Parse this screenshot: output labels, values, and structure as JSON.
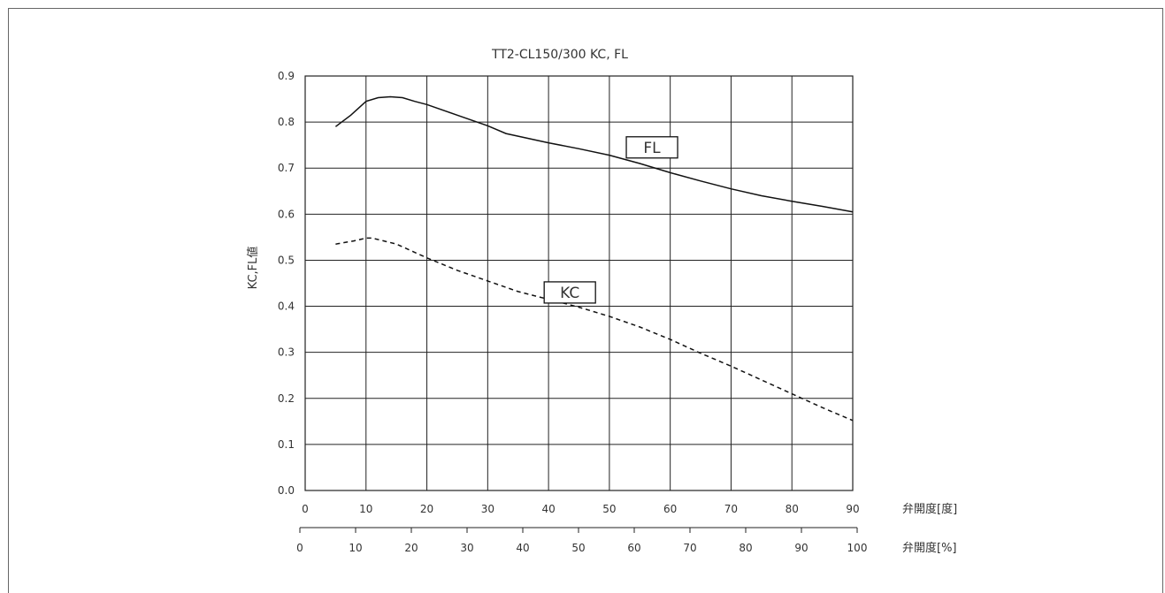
{
  "chart_data": {
    "type": "line",
    "title": "TT2-CL150/300 KC, FL",
    "ylabel": "KC,FL値",
    "xlabel_degree": "弁開度[度]",
    "xlabel_percent": "弁開度[%]",
    "xlim": [
      0,
      90
    ],
    "ylim": [
      0.0,
      0.9
    ],
    "x_ticks_degree": [
      "0",
      "10",
      "20",
      "30",
      "40",
      "50",
      "60",
      "70",
      "80",
      "90"
    ],
    "x_ticks_percent": [
      "0",
      "10",
      "20",
      "30",
      "40",
      "50",
      "60",
      "70",
      "80",
      "90",
      "100"
    ],
    "y_ticks": [
      "0.0",
      "0.1",
      "0.2",
      "0.3",
      "0.4",
      "0.5",
      "0.6",
      "0.7",
      "0.8",
      "0.9"
    ],
    "grid": true,
    "series": [
      {
        "name": "FL",
        "line_style": "solid",
        "x": [
          5,
          7.5,
          10,
          12,
          14,
          16,
          18,
          20,
          25,
          30,
          33,
          40,
          45,
          50,
          55,
          60,
          65,
          70,
          75,
          80,
          85,
          90
        ],
        "y": [
          0.79,
          0.815,
          0.845,
          0.853,
          0.855,
          0.853,
          0.845,
          0.838,
          0.815,
          0.792,
          0.775,
          0.755,
          0.742,
          0.728,
          0.71,
          0.69,
          0.672,
          0.655,
          0.64,
          0.628,
          0.617,
          0.605
        ]
      },
      {
        "name": "KC",
        "line_style": "dashed",
        "x": [
          5,
          8,
          10,
          11,
          15,
          20,
          25,
          30,
          35,
          40,
          45,
          50,
          55,
          60,
          65,
          70,
          75,
          80,
          85,
          90
        ],
        "y": [
          0.535,
          0.542,
          0.548,
          0.548,
          0.535,
          0.505,
          0.478,
          0.455,
          0.432,
          0.415,
          0.398,
          0.378,
          0.355,
          0.328,
          0.298,
          0.27,
          0.24,
          0.21,
          0.18,
          0.152
        ]
      }
    ]
  }
}
